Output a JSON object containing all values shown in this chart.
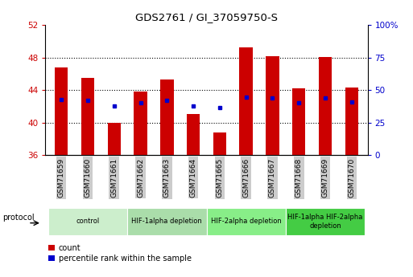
{
  "title": "GDS2761 / GI_37059750-S",
  "samples": [
    "GSM71659",
    "GSM71660",
    "GSM71661",
    "GSM71662",
    "GSM71663",
    "GSM71664",
    "GSM71665",
    "GSM71666",
    "GSM71667",
    "GSM71668",
    "GSM71669",
    "GSM71670"
  ],
  "count_values": [
    46.8,
    45.5,
    40.0,
    43.8,
    45.3,
    41.1,
    38.8,
    49.2,
    48.2,
    44.2,
    48.1,
    44.3
  ],
  "percentile_values": [
    42.5,
    42.0,
    37.5,
    40.0,
    42.3,
    38.0,
    36.5,
    44.5,
    44.0,
    40.5,
    44.0,
    41.0
  ],
  "y_min": 36,
  "y_max": 52,
  "y_ticks_left": [
    36,
    40,
    44,
    48,
    52
  ],
  "y_ticks_right": [
    0,
    25,
    50,
    75,
    100
  ],
  "bar_color": "#cc0000",
  "percentile_color": "#0000cc",
  "bar_bottom": 36,
  "groups": [
    {
      "label": "control",
      "start": 0,
      "end": 3,
      "color": "#cceecc"
    },
    {
      "label": "HIF-1alpha depletion",
      "start": 3,
      "end": 6,
      "color": "#aaddaa"
    },
    {
      "label": "HIF-2alpha depletion",
      "start": 6,
      "end": 9,
      "color": "#88ee88"
    },
    {
      "label": "HIF-1alpha HIF-2alpha\ndepletion",
      "start": 9,
      "end": 12,
      "color": "#44cc44"
    }
  ],
  "legend_count_label": "count",
  "legend_percentile_label": "percentile rank within the sample",
  "protocol_label": "protocol",
  "ylabel_left_color": "#cc0000",
  "ylabel_right_color": "#0000cc",
  "bg_color": "#ffffff",
  "plot_bg": "#ffffff",
  "tick_label_bg": "#cccccc"
}
